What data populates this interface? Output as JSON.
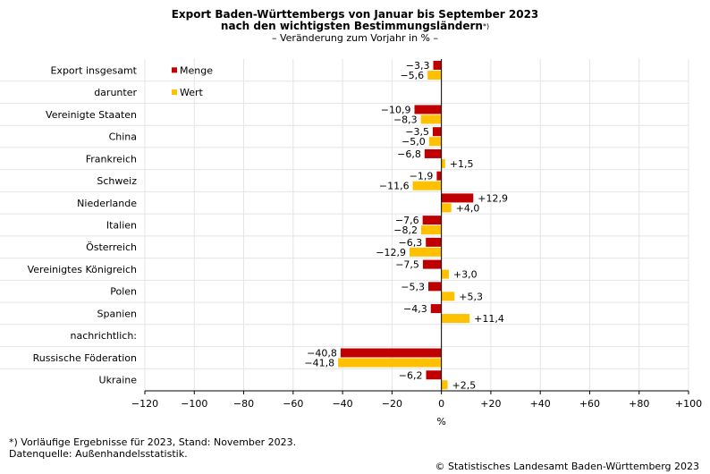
{
  "title": {
    "line1": "Export Baden-Württembergs von Januar bis September 2023",
    "line2": "nach den wichtigsten Bestimmungsländern",
    "line2_sup": "*)",
    "subtitle": "– Veränderung zum Vorjahr in % –"
  },
  "chart_data": {
    "type": "bar",
    "orientation": "horizontal",
    "xlabel": "%",
    "xlim": [
      -120,
      100
    ],
    "xticks": [
      -120,
      -100,
      -80,
      -60,
      -40,
      -20,
      0,
      20,
      40,
      60,
      80,
      100
    ],
    "xtick_labels": [
      "−120",
      "−100",
      "−80",
      "−60",
      "−40",
      "−20",
      "0",
      "+20",
      "+40",
      "+60",
      "+80",
      "+100"
    ],
    "legend_position": "top-left",
    "colors": {
      "Menge": "#c00000",
      "Wert": "#ffc000"
    },
    "categories": [
      "Export insgesamt",
      "darunter",
      "Vereinigte Staaten",
      "China",
      "Frankreich",
      "Schweiz",
      "Niederlande",
      "Italien",
      "Österreich",
      "Vereinigtes Königreich",
      "Polen",
      "Spanien",
      "nachrichtlich:",
      "Russische Föderation",
      "Ukraine"
    ],
    "series": [
      {
        "name": "Menge",
        "values": [
          -3.3,
          null,
          -10.9,
          -3.5,
          -6.8,
          -1.9,
          12.9,
          -7.6,
          -6.3,
          -7.5,
          -5.3,
          -4.3,
          null,
          -40.8,
          -6.2
        ],
        "labels": [
          "−3,3",
          "",
          "−10,9",
          "−3,5",
          "−6,8",
          "−1,9",
          "+12,9",
          "−7,6",
          "−6,3",
          "−7,5",
          "−5,3",
          "−4,3",
          "",
          "−40,8",
          "−6,2"
        ]
      },
      {
        "name": "Wert",
        "values": [
          -5.6,
          null,
          -8.3,
          -5.0,
          1.5,
          -11.6,
          4.0,
          -8.2,
          -12.9,
          3.0,
          5.3,
          11.4,
          null,
          -41.8,
          2.5
        ],
        "labels": [
          "−5,6",
          "",
          "−8,3",
          "−5,0",
          "+1,5",
          "−11,6",
          "+4,0",
          "−8,2",
          "−12,9",
          "+3,0",
          "+5,3",
          "+11,4",
          "",
          "−41,8",
          "+2,5"
        ]
      }
    ]
  },
  "footnotes": {
    "note1": "*) Vorläufige Ergebnisse für 2023, Stand: November 2023.",
    "note2": "Datenquelle: Außenhandelsstatistik."
  },
  "copyright": "© Statistisches Landesamt Baden-Württemberg 2023"
}
